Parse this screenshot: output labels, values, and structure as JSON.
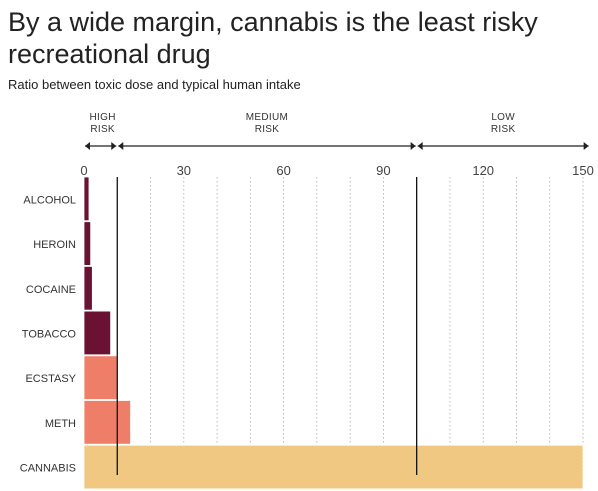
{
  "title": "By a wide margin, cannabis is the least risky recreational drug",
  "subtitle": "Ratio between toxic dose and typical human intake",
  "zones": [
    {
      "label_line1": "HIGH",
      "label_line2": "RISK",
      "from": 0,
      "to": 10
    },
    {
      "label_line1": "MEDIUM",
      "label_line2": "RISK",
      "from": 10,
      "to": 100
    },
    {
      "label_line1": "LOW",
      "label_line2": "RISK",
      "from": 100,
      "to": 152
    }
  ],
  "chart_data": {
    "type": "bar",
    "orientation": "horizontal",
    "title": "By a wide margin, cannabis is the least risky recreational drug",
    "subtitle": "Ratio between toxic dose and typical human intake",
    "categories": [
      "ALCOHOL",
      "HEROIN",
      "COCAINE",
      "TOBACCO",
      "ECSTASY",
      "METH",
      "CANNABIS"
    ],
    "values": [
      1.5,
      2,
      2.5,
      8,
      10,
      14,
      150
    ],
    "colors": [
      "#6b1232",
      "#6b1232",
      "#6b1232",
      "#6b1232",
      "#ef7e69",
      "#ef7e69",
      "#f0c882"
    ],
    "xlim": [
      0,
      152
    ],
    "x_ticks": [
      0,
      30,
      60,
      90,
      120,
      150
    ],
    "x_gridline_step": 10,
    "zone_boundaries": [
      10,
      100
    ],
    "grid": true
  }
}
